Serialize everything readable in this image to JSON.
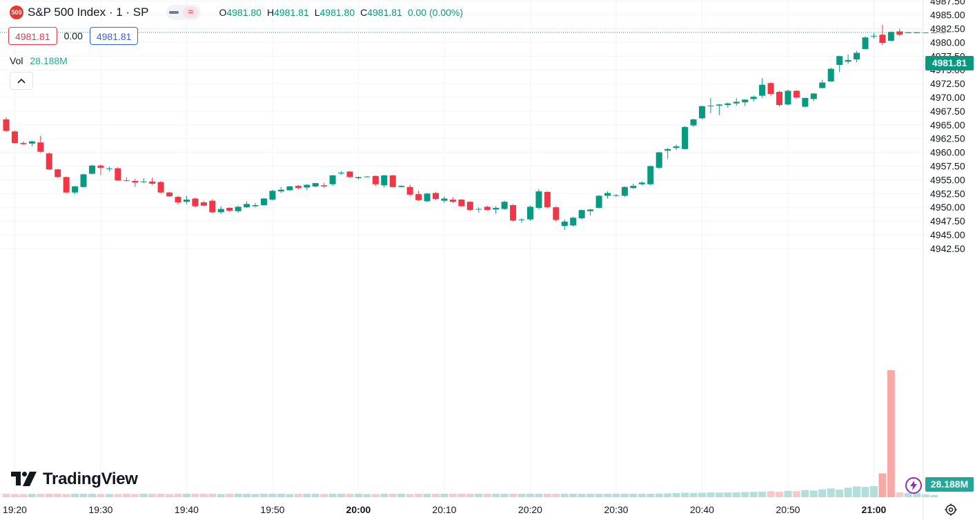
{
  "header": {
    "symbol_badge": "500",
    "title": "S&P 500 Index · 1 · SP",
    "ohlc": [
      {
        "key": "O",
        "value": "4981.80"
      },
      {
        "key": "H",
        "value": "4981.81"
      },
      {
        "key": "L",
        "value": "4981.80"
      },
      {
        "key": "C",
        "value": "4981.81"
      },
      {
        "key": "",
        "value": "0.00 (0.00%)"
      }
    ]
  },
  "trade": {
    "sell_price": "4981.81",
    "spread": "0.00",
    "buy_price": "4981.81"
  },
  "volume_legend": {
    "label": "Vol",
    "value": "28.188M"
  },
  "logo_text": "TradingView",
  "last_price_label": "4981.81",
  "last_volume_label": "28.188M",
  "colors": {
    "up": "#089981",
    "down": "#f23645",
    "vol_up": "#b2dfdb",
    "vol_down": "#f7c9cc",
    "vol_spike": "#f7a9a7"
  },
  "chart_data": {
    "type": "candlestick",
    "timeframe": "1 minute",
    "y_axis_ticks": [
      "4987.50",
      "4985.00",
      "4982.50",
      "4980.00",
      "4977.50",
      "4975.00",
      "4972.50",
      "4970.00",
      "4967.50",
      "4965.00",
      "4962.50",
      "4960.00",
      "4957.50",
      "4955.00",
      "4952.50",
      "4950.00",
      "4947.50",
      "4945.00",
      "4942.50"
    ],
    "ylim": [
      4942.5,
      4987.5
    ],
    "x_axis_ticks": [
      {
        "label": "19:20",
        "minute": 1,
        "bold": false
      },
      {
        "label": "19:30",
        "minute": 11,
        "bold": false
      },
      {
        "label": "19:40",
        "minute": 21,
        "bold": false
      },
      {
        "label": "19:50",
        "minute": 31,
        "bold": false
      },
      {
        "label": "20:00",
        "minute": 41,
        "bold": true
      },
      {
        "label": "20:10",
        "minute": 51,
        "bold": false
      },
      {
        "label": "20:20",
        "minute": 61,
        "bold": false
      },
      {
        "label": "20:30",
        "minute": 71,
        "bold": false
      },
      {
        "label": "20:40",
        "minute": 81,
        "bold": false
      },
      {
        "label": "20:50",
        "minute": 91,
        "bold": false
      },
      {
        "label": "21:00",
        "minute": 101,
        "bold": true
      }
    ],
    "last_price": 4981.81,
    "candles": [
      [
        4966.0,
        4966.4,
        4963.7,
        4963.9
      ],
      [
        4963.8,
        4964.0,
        4961.6,
        4961.7
      ],
      [
        4961.7,
        4962.0,
        4961.3,
        4961.5
      ],
      [
        4961.6,
        4962.1,
        4961.1,
        4962.0
      ],
      [
        4961.8,
        4963.0,
        4959.9,
        4960.1
      ],
      [
        4959.8,
        4960.0,
        4956.8,
        4956.9
      ],
      [
        4956.9,
        4957.0,
        4955.4,
        4955.5
      ],
      [
        4955.5,
        4955.6,
        4952.6,
        4952.7
      ],
      [
        4952.7,
        4953.9,
        4952.4,
        4953.8
      ],
      [
        4953.7,
        4956.1,
        4953.6,
        4956.0
      ],
      [
        4956.1,
        4957.7,
        4956.0,
        4957.6
      ],
      [
        4957.6,
        4957.8,
        4955.9,
        4957.2
      ],
      [
        4957.0,
        4957.4,
        4956.5,
        4957.1
      ],
      [
        4957.1,
        4957.3,
        4954.8,
        4954.9
      ],
      [
        4954.9,
        4955.5,
        4954.7,
        4954.8
      ],
      [
        4954.8,
        4955.2,
        4953.7,
        4954.5
      ],
      [
        4954.6,
        4955.3,
        4954.4,
        4954.7
      ],
      [
        4954.7,
        4955.4,
        4954.1,
        4954.3
      ],
      [
        4954.6,
        4954.8,
        4952.5,
        4952.7
      ],
      [
        4952.7,
        4952.8,
        4951.9,
        4952.0
      ],
      [
        4951.9,
        4952.1,
        4950.5,
        4950.9
      ],
      [
        4951.0,
        4952.1,
        4950.6,
        4951.4
      ],
      [
        4951.6,
        4951.8,
        4950.0,
        4950.2
      ],
      [
        4950.9,
        4951.2,
        4950.2,
        4950.3
      ],
      [
        4951.2,
        4951.5,
        4948.9,
        4949.1
      ],
      [
        4949.1,
        4950.2,
        4948.8,
        4949.7
      ],
      [
        4949.9,
        4950.0,
        4949.2,
        4949.4
      ],
      [
        4949.3,
        4950.3,
        4949.0,
        4950.1
      ],
      [
        4950.0,
        4951.1,
        4949.9,
        4950.6
      ],
      [
        4950.2,
        4950.8,
        4950.0,
        4950.4
      ],
      [
        4950.4,
        4951.7,
        4950.3,
        4951.6
      ],
      [
        4951.4,
        4953.2,
        4951.2,
        4953.0
      ],
      [
        4952.9,
        4953.7,
        4952.6,
        4953.2
      ],
      [
        4953.1,
        4953.9,
        4953.0,
        4953.8
      ],
      [
        4953.9,
        4954.1,
        4953.3,
        4953.5
      ],
      [
        4953.6,
        4954.2,
        4953.1,
        4954.1
      ],
      [
        4953.8,
        4954.4,
        4953.6,
        4954.4
      ],
      [
        4954.0,
        4954.5,
        4953.5,
        4953.8
      ],
      [
        4954.2,
        4955.9,
        4953.9,
        4955.8
      ],
      [
        4956.2,
        4956.6,
        4955.9,
        4956.3
      ],
      [
        4956.5,
        4956.6,
        4955.3,
        4955.5
      ],
      [
        4955.3,
        4955.6,
        4955.0,
        4955.5
      ],
      [
        4955.6,
        4955.7,
        4955.5,
        4955.6
      ],
      [
        4955.7,
        4955.8,
        4953.9,
        4954.2
      ],
      [
        4954.0,
        4955.9,
        4953.6,
        4955.8
      ],
      [
        4955.8,
        4955.9,
        4953.6,
        4953.7
      ],
      [
        4953.7,
        4954.0,
        4953.6,
        4953.9
      ],
      [
        4953.7,
        4954.1,
        4952.0,
        4952.3
      ],
      [
        4952.4,
        4953.0,
        4951.1,
        4951.3
      ],
      [
        4951.1,
        4952.6,
        4950.9,
        4952.5
      ],
      [
        4952.6,
        4952.8,
        4951.3,
        4951.5
      ],
      [
        4951.2,
        4952.0,
        4950.8,
        4951.6
      ],
      [
        4951.4,
        4951.8,
        4950.8,
        4951.0
      ],
      [
        4951.4,
        4951.5,
        4950.1,
        4950.2
      ],
      [
        4951.0,
        4951.1,
        4949.3,
        4949.5
      ],
      [
        4949.6,
        4950.0,
        4949.0,
        4949.7
      ],
      [
        4950.1,
        4950.3,
        4949.4,
        4949.5
      ],
      [
        4949.6,
        4950.2,
        4948.8,
        4949.9
      ],
      [
        4949.7,
        4951.2,
        4949.5,
        4951.0
      ],
      [
        4950.4,
        4950.6,
        4947.4,
        4947.6
      ],
      [
        4947.8,
        4948.0,
        4947.2,
        4947.8
      ],
      [
        4947.8,
        4950.3,
        4947.5,
        4950.1
      ],
      [
        4949.9,
        4953.3,
        4949.6,
        4952.9
      ],
      [
        4952.8,
        4952.9,
        4949.8,
        4950.0
      ],
      [
        4950.0,
        4950.2,
        4947.4,
        4947.7
      ],
      [
        4946.6,
        4947.8,
        4945.9,
        4947.4
      ],
      [
        4946.7,
        4948.3,
        4946.5,
        4948.1
      ],
      [
        4948.0,
        4949.6,
        4947.8,
        4949.5
      ],
      [
        4949.3,
        4949.7,
        4948.5,
        4949.6
      ],
      [
        4949.9,
        4952.2,
        4949.8,
        4952.1
      ],
      [
        4952.1,
        4952.9,
        4951.6,
        4952.6
      ],
      [
        4952.2,
        4952.4,
        4951.9,
        4952.2
      ],
      [
        4952.1,
        4953.8,
        4951.9,
        4953.7
      ],
      [
        4953.5,
        4954.3,
        4953.4,
        4953.9
      ],
      [
        4954.2,
        4954.7,
        4954.0,
        4954.5
      ],
      [
        4954.2,
        4957.6,
        4954.0,
        4957.5
      ],
      [
        4957.2,
        4960.1,
        4957.0,
        4960.0
      ],
      [
        4960.3,
        4960.8,
        4958.8,
        4960.6
      ],
      [
        4960.8,
        4961.4,
        4960.4,
        4961.1
      ],
      [
        4960.6,
        4964.8,
        4960.5,
        4964.6
      ],
      [
        4964.9,
        4966.1,
        4964.6,
        4966.0
      ],
      [
        4966.2,
        4968.5,
        4966.0,
        4968.4
      ],
      [
        4968.4,
        4969.9,
        4967.1,
        4968.5
      ],
      [
        4968.5,
        4968.8,
        4966.8,
        4968.7
      ],
      [
        4968.6,
        4969.1,
        4968.1,
        4968.9
      ],
      [
        4968.9,
        4969.9,
        4968.5,
        4969.2
      ],
      [
        4969.1,
        4969.6,
        4968.4,
        4969.6
      ],
      [
        4969.7,
        4970.3,
        4969.2,
        4970.1
      ],
      [
        4970.3,
        4973.5,
        4969.9,
        4972.3
      ],
      [
        4972.6,
        4972.8,
        4970.3,
        4970.6
      ],
      [
        4971.0,
        4971.2,
        4968.3,
        4968.6
      ],
      [
        4968.7,
        4971.4,
        4968.5,
        4971.2
      ],
      [
        4971.2,
        4971.3,
        4969.8,
        4970.0
      ],
      [
        4968.3,
        4969.9,
        4968.2,
        4969.9
      ],
      [
        4969.7,
        4970.8,
        4969.3,
        4970.7
      ],
      [
        4971.7,
        4973.2,
        4971.6,
        4972.7
      ],
      [
        4972.9,
        4975.4,
        4972.8,
        4975.2
      ],
      [
        4975.9,
        4977.6,
        4974.6,
        4977.5
      ],
      [
        4976.5,
        4977.8,
        4976.1,
        4976.8
      ],
      [
        4976.9,
        4978.4,
        4976.4,
        4978.1
      ],
      [
        4978.8,
        4981.1,
        4978.7,
        4980.9
      ],
      [
        4981.2,
        4981.7,
        4980.7,
        4981.2
      ],
      [
        4981.4,
        4983.2,
        4979.5,
        4979.9
      ],
      [
        4980.3,
        4982.0,
        4980.2,
        4981.9
      ],
      [
        4982.0,
        4982.5,
        4981.1,
        4981.4
      ],
      [
        4981.8,
        4981.9,
        4981.7,
        4981.8
      ],
      [
        4981.8,
        4981.9,
        4981.7,
        4981.8
      ],
      [
        4981.8,
        4981.8,
        4981.7,
        4981.8
      ],
      [
        4981.8,
        4981.8,
        4981.8,
        4981.8
      ],
      [
        4981.8,
        4981.8,
        4981.8,
        4981.8
      ]
    ],
    "volumes_relative": [
      0.22,
      0.2,
      0.2,
      0.21,
      0.21,
      0.22,
      0.22,
      0.2,
      0.22,
      0.22,
      0.21,
      0.2,
      0.2,
      0.2,
      0.22,
      0.2,
      0.22,
      0.21,
      0.22,
      0.2,
      0.22,
      0.22,
      0.22,
      0.22,
      0.22,
      0.2,
      0.22,
      0.22,
      0.22,
      0.2,
      0.22,
      0.22,
      0.22,
      0.2,
      0.22,
      0.22,
      0.22,
      0.2,
      0.22,
      0.22,
      0.21,
      0.22,
      0.2,
      0.2,
      0.22,
      0.22,
      0.22,
      0.2,
      0.22,
      0.22,
      0.22,
      0.22,
      0.22,
      0.22,
      0.22,
      0.22,
      0.22,
      0.22,
      0.22,
      0.22,
      0.22,
      0.22,
      0.22,
      0.22,
      0.22,
      0.22,
      0.22,
      0.22,
      0.22,
      0.22,
      0.22,
      0.22,
      0.22,
      0.22,
      0.22,
      0.22,
      0.23,
      0.24,
      0.26,
      0.28,
      0.27,
      0.28,
      0.3,
      0.29,
      0.3,
      0.31,
      0.32,
      0.33,
      0.35,
      0.38,
      0.34,
      0.4,
      0.38,
      0.45,
      0.42,
      0.5,
      0.55,
      0.48,
      0.6,
      0.68,
      0.65,
      0.7,
      1.5,
      8.0,
      0.3,
      0.26,
      0.26,
      0.18,
      0.14
    ]
  }
}
